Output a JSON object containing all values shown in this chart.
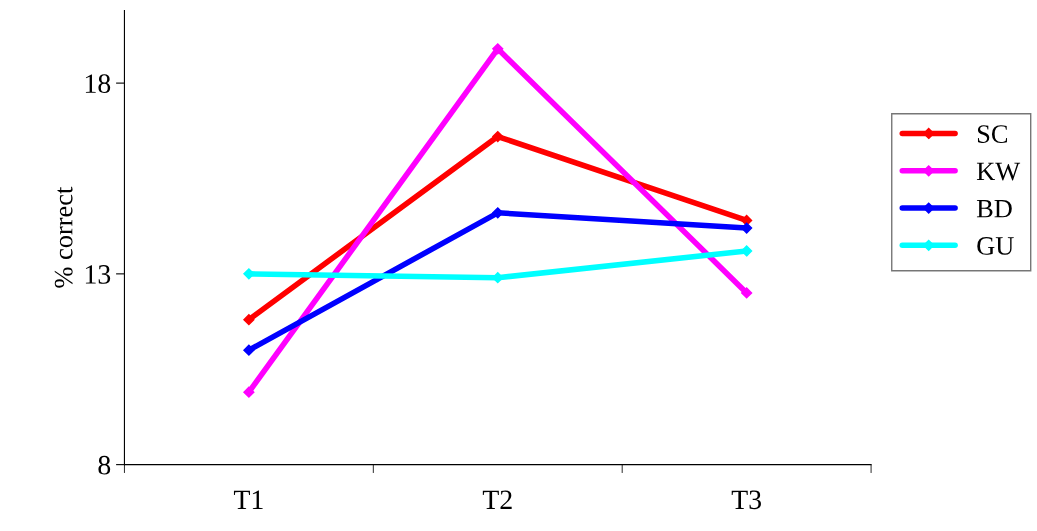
{
  "chart_data": {
    "type": "line",
    "ylabel": "% correct",
    "categories": [
      "T1",
      "T2",
      "T3"
    ],
    "series": [
      {
        "name": "SC",
        "color": "#ff0000",
        "values": [
          11.8,
          16.6,
          14.4
        ]
      },
      {
        "name": "KW",
        "color": "#ff00ff",
        "values": [
          9.9,
          18.9,
          12.5
        ]
      },
      {
        "name": "BD",
        "color": "#0000ff",
        "values": [
          11.0,
          14.6,
          14.2
        ]
      },
      {
        "name": "GU",
        "color": "#00ffff",
        "values": [
          13.0,
          12.9,
          13.6
        ]
      }
    ],
    "ylim": [
      8,
      19.9
    ],
    "yticks": [
      8,
      13,
      18
    ],
    "grid": false,
    "legend": "right",
    "marker": "diamond"
  }
}
